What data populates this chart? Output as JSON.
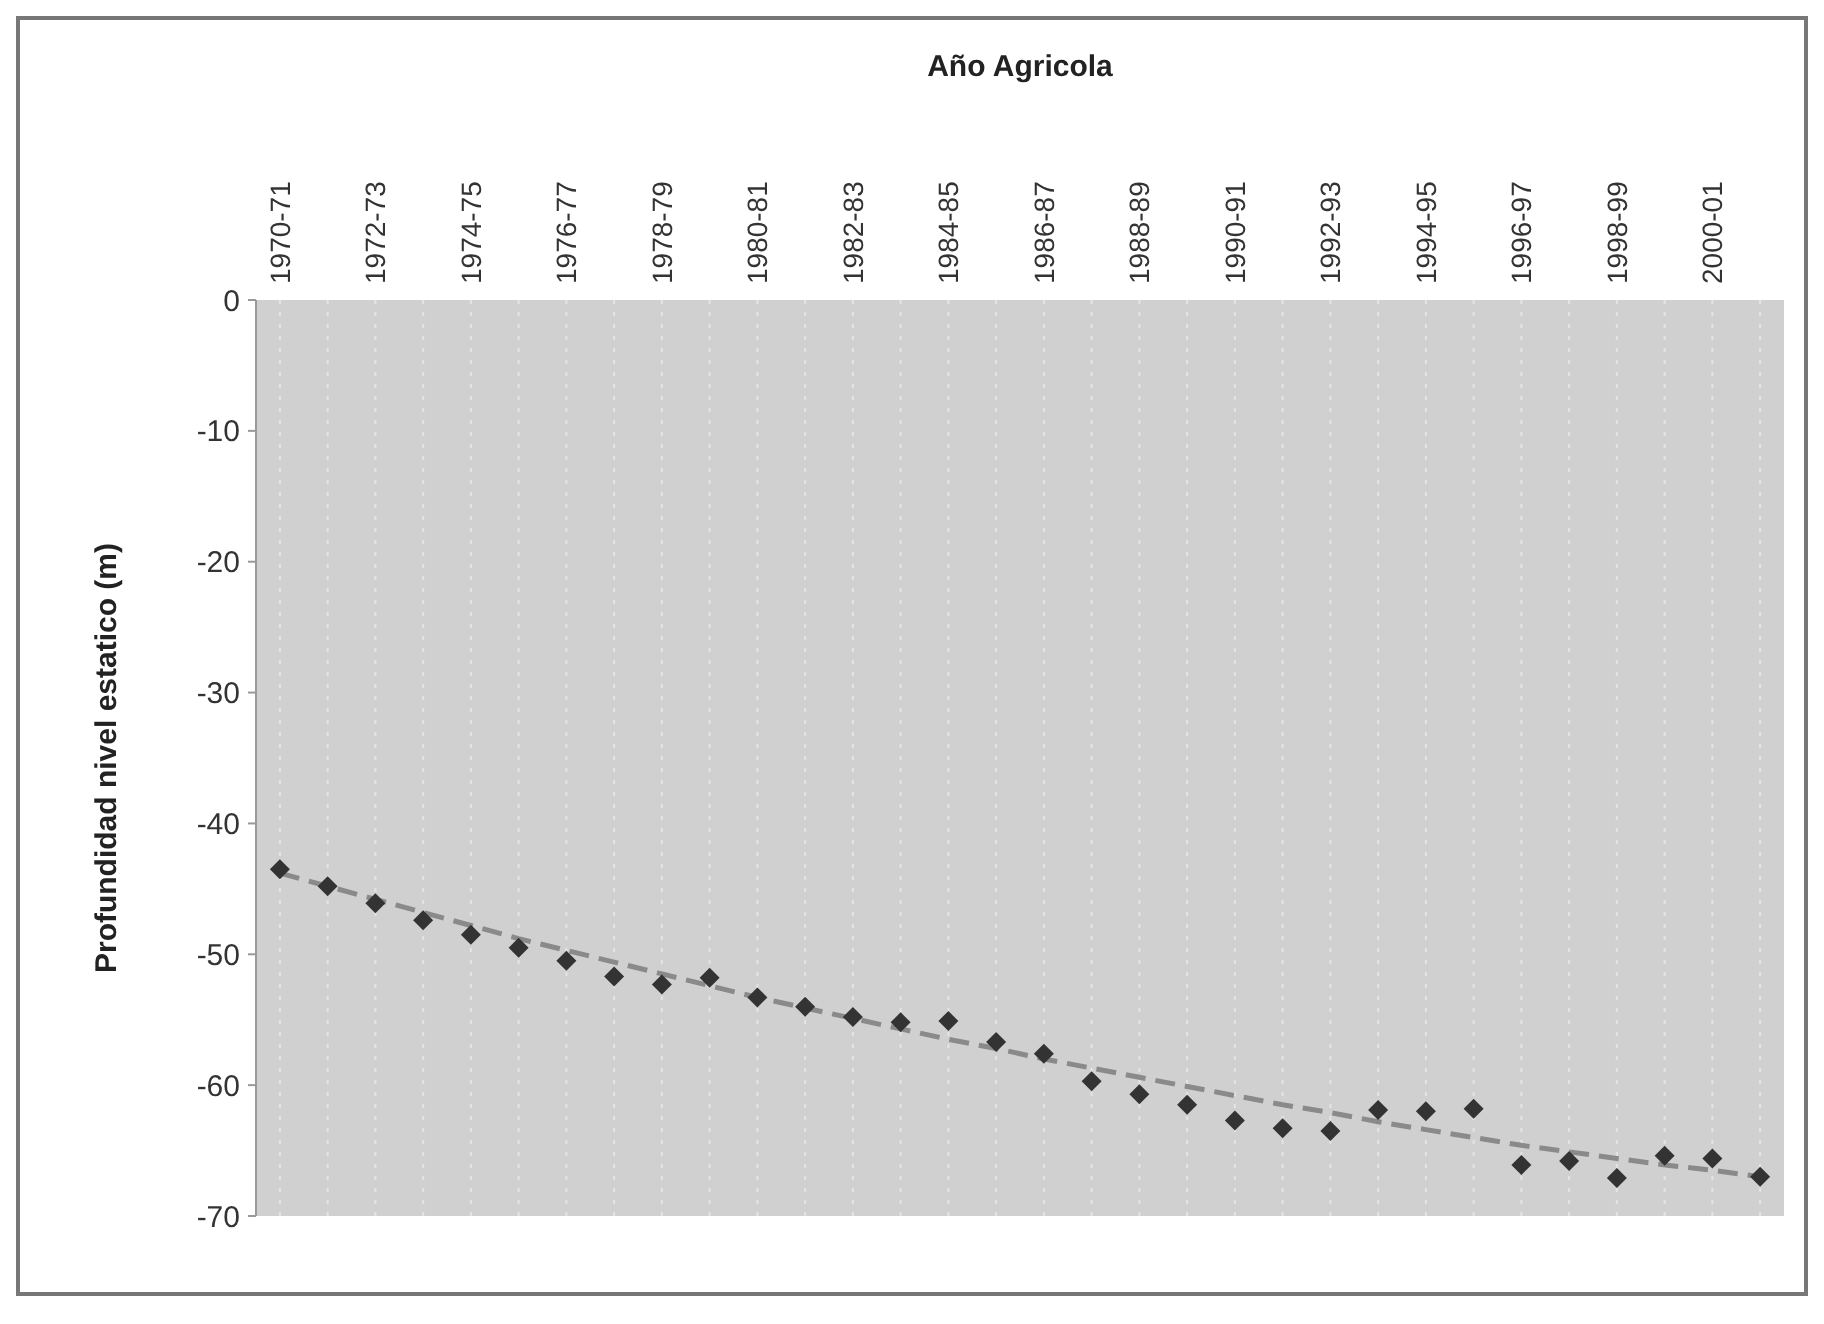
{
  "chart_data": {
    "type": "scatter",
    "xlabel": "Año Agricola",
    "ylabel": "Profundidad nivel estatico (m)",
    "categories": [
      "1970-71",
      null,
      "1972-73",
      null,
      "1974-75",
      null,
      "1976-77",
      null,
      "1978-79",
      null,
      "1980-81",
      null,
      "1982-83",
      null,
      "1984-85",
      null,
      "1986-87",
      null,
      "1988-89",
      null,
      "1990-91",
      null,
      "1992-93",
      null,
      "1994-95",
      null,
      "1996-97",
      null,
      "1998-99",
      null,
      "2000-01",
      null
    ],
    "series": [
      {
        "color": "#333333",
        "marker": "diamond",
        "values": [
          -43.5,
          -44.8,
          -46.1,
          -47.4,
          -48.5,
          -49.5,
          -50.5,
          -51.7,
          -52.3,
          -51.8,
          -53.3,
          -54.0,
          -54.8,
          -55.2,
          -55.1,
          -56.7,
          -57.6,
          -59.7,
          -60.7,
          -61.5,
          -62.7,
          -63.3,
          -63.5,
          -61.9,
          -62.0,
          -61.8,
          -66.1,
          -65.8,
          -67.1,
          -65.4,
          -65.6,
          -67.0
        ]
      },
      {
        "type": "line",
        "color": "#8a8a8a",
        "line_style": "dashed",
        "marker": "none",
        "values": [
          -43.8,
          -44.8,
          -45.8,
          -46.8,
          -47.8,
          -48.8,
          -49.7,
          -50.6,
          -51.5,
          -52.4,
          -53.3,
          -54.1,
          -54.9,
          -55.7,
          -56.5,
          -57.2,
          -58.0,
          -58.7,
          -59.4,
          -60.1,
          -60.8,
          -61.5,
          -62.1,
          -62.8,
          -63.4,
          -64.0,
          -64.6,
          -65.1,
          -65.6,
          -66.1,
          -66.5,
          -67.0
        ]
      }
    ],
    "ylim": [
      -70,
      0
    ],
    "yticks": [
      0,
      -10,
      -20,
      -30,
      -40,
      -50,
      -60,
      -70
    ],
    "grid": "x"
  }
}
